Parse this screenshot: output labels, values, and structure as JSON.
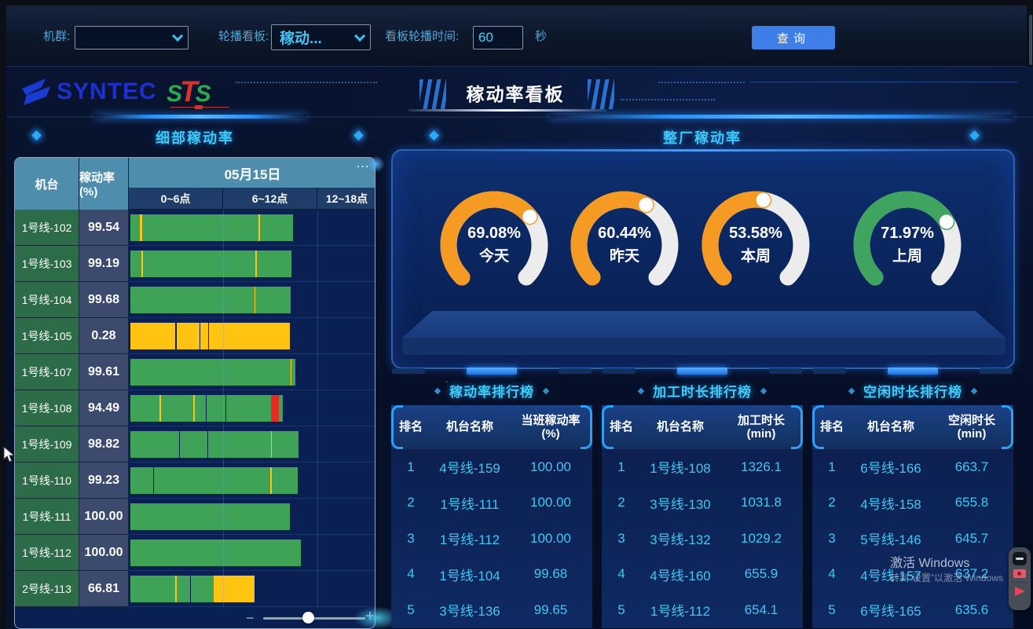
{
  "page": {
    "title": "稼动率看板",
    "brand": "SYNTEC",
    "brand2": "STS"
  },
  "filter_bar": {
    "machine_group_label": "机群:",
    "machine_group_value": "",
    "carousel_label": "轮播看板:",
    "carousel_value": "稼动...",
    "interval_label": "看板轮播时间:",
    "interval_value": "60",
    "interval_unit": "秒",
    "query_button": "查询"
  },
  "left_panel": {
    "more": "...",
    "zoom_out": "−",
    "zoom_in": "+"
  },
  "watermark": {
    "line1": "激活 Windows",
    "line2": "转到“设置”以激活 Windows"
  },
  "chart_data": [
    {
      "type": "gauge",
      "title": "整厂稼动率",
      "max": 100,
      "unit": "%",
      "gauges": [
        {
          "label": "今天",
          "value": 69.08,
          "color": "#F59A23"
        },
        {
          "label": "昨天",
          "value": 60.44,
          "color": "#F59A23"
        },
        {
          "label": "本周",
          "value": 53.58,
          "color": "#F59A23"
        },
        {
          "label": "上周",
          "value": 71.97,
          "color": "#3FA45F"
        }
      ]
    },
    {
      "type": "bar",
      "title": "细部稼动率",
      "columns": [
        "机台",
        "稼动率(%)"
      ],
      "date_header": "05月15日",
      "x_ticks": [
        "0~6点",
        "6~12点",
        "12~18点"
      ],
      "legend_colors": {
        "run": "#3EA257",
        "idle": "#FFC411",
        "alarm": "#E82A1F"
      },
      "rows": [
        {
          "machine": "1号线-102",
          "rate": "99.54",
          "segments": [
            [
              "g",
              4.0
            ],
            [
              "y",
              0.7
            ],
            [
              "g",
              48.0
            ],
            [
              "y",
              0.7
            ],
            [
              "g",
              13.5
            ]
          ]
        },
        {
          "machine": "1号线-103",
          "rate": "99.19",
          "segments": [
            [
              "g",
              4.5
            ],
            [
              "y",
              0.6
            ],
            [
              "g",
              46.5
            ],
            [
              "y",
              0.6
            ],
            [
              "g",
              14.0
            ]
          ]
        },
        {
          "machine": "1号线-104",
          "rate": "99.68",
          "segments": [
            [
              "g",
              51.0
            ],
            [
              "y",
              0.6
            ],
            [
              "g",
              14.4
            ]
          ]
        },
        {
          "machine": "1号线-105",
          "rate": "0.28",
          "segments": [
            [
              "y",
              18.6
            ],
            [
              "x",
              0.4
            ],
            [
              "y",
              9.5
            ],
            [
              "x",
              0.4
            ],
            [
              "y",
              3.0
            ],
            [
              "x",
              0.4
            ],
            [
              "y",
              33.5
            ]
          ]
        },
        {
          "machine": "1号线-107",
          "rate": "99.61",
          "segments": [
            [
              "g",
              66.0
            ],
            [
              "y",
              0.5
            ],
            [
              "g",
              1.5
            ]
          ]
        },
        {
          "machine": "1号线-108",
          "rate": "94.49",
          "segments": [
            [
              "g",
              12.0
            ],
            [
              "y",
              0.6
            ],
            [
              "g",
              13.4
            ],
            [
              "y",
              0.6
            ],
            [
              "g",
              4.4
            ],
            [
              "x",
              0.4
            ],
            [
              "g",
              7.8
            ],
            [
              "x",
              0.4
            ],
            [
              "g",
              18.5
            ],
            [
              "r",
              3.2
            ],
            [
              "g",
              1.5
            ]
          ]
        },
        {
          "machine": "1号线-109",
          "rate": "98.82",
          "segments": [
            [
              "g",
              20.0
            ],
            [
              "x",
              0.4
            ],
            [
              "g",
              11.3
            ],
            [
              "x",
              0.4
            ],
            [
              "g",
              25.7
            ],
            [
              "y",
              0.6
            ],
            [
              "g",
              11.0
            ]
          ]
        },
        {
          "machine": "1号线-110",
          "rate": "99.23",
          "segments": [
            [
              "g",
              9.4
            ],
            [
              "x",
              0.4
            ],
            [
              "g",
              47.8
            ],
            [
              "y",
              0.6
            ],
            [
              "g",
              10.8
            ]
          ]
        },
        {
          "machine": "1号线-111",
          "rate": "100.00",
          "segments": [
            [
              "g",
              65.8
            ]
          ]
        },
        {
          "machine": "1号线-112",
          "rate": "100.00",
          "segments": [
            [
              "g",
              70.2
            ]
          ]
        },
        {
          "machine": "2号线-113",
          "rate": "66.81",
          "segments": [
            [
              "g",
              8.9
            ],
            [
              "x",
              0.3
            ],
            [
              "g",
              9.4
            ],
            [
              "y",
              0.4
            ],
            [
              "g",
              5.5
            ],
            [
              "x",
              0.3
            ],
            [
              "g",
              9.6
            ],
            [
              "y",
              16.6
            ]
          ]
        }
      ]
    },
    {
      "type": "table",
      "title": "稼动率排行榜",
      "columns": [
        "排名",
        "机台名称",
        "当班稼动率(%)"
      ],
      "rows": [
        [
          "1",
          "4号线-159",
          "100.00"
        ],
        [
          "2",
          "1号线-111",
          "100.00"
        ],
        [
          "3",
          "1号线-112",
          "100.00"
        ],
        [
          "4",
          "1号线-104",
          "99.68"
        ],
        [
          "5",
          "3号线-136",
          "99.65"
        ]
      ]
    },
    {
      "type": "table",
      "title": "加工时长排行榜",
      "columns": [
        "排名",
        "机台名称",
        "加工时长(min)"
      ],
      "rows": [
        [
          "1",
          "1号线-108",
          "1326.1"
        ],
        [
          "2",
          "3号线-130",
          "1031.8"
        ],
        [
          "3",
          "3号线-132",
          "1029.2"
        ],
        [
          "4",
          "4号线-160",
          "655.9"
        ],
        [
          "5",
          "1号线-112",
          "654.1"
        ]
      ]
    },
    {
      "type": "table",
      "title": "空闲时长排行榜",
      "columns": [
        "排名",
        "机台名称",
        "空闲时长(min)"
      ],
      "rows": [
        [
          "1",
          "6号线-166",
          "663.7"
        ],
        [
          "2",
          "4号线-158",
          "655.8"
        ],
        [
          "3",
          "5号线-146",
          "645.7"
        ],
        [
          "4",
          "4号线-157",
          "637.2"
        ],
        [
          "5",
          "6号线-165",
          "635.6"
        ]
      ]
    }
  ]
}
